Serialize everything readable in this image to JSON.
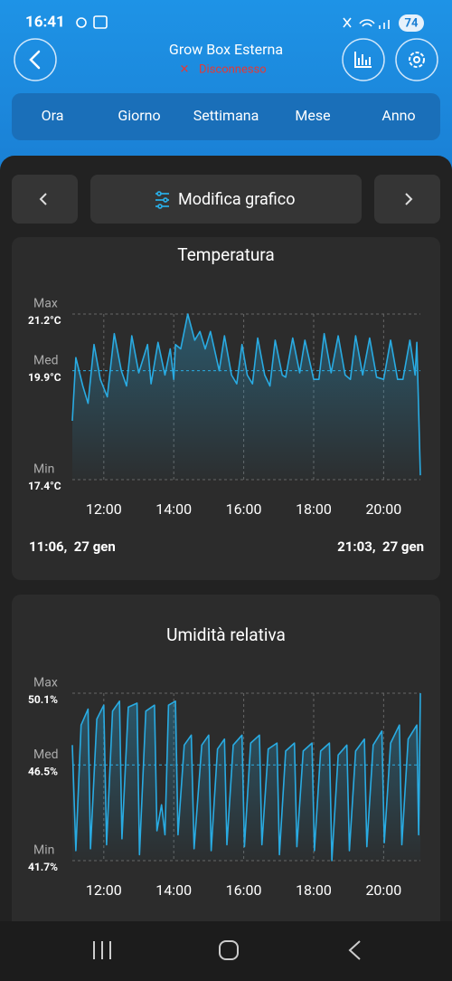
{
  "status_bar": {
    "time": "16:41",
    "battery": "74"
  },
  "header": {
    "title": "Grow Box Esterna",
    "status": "Disconnesso"
  },
  "tabs": [
    "Ora",
    "Giorno",
    "Settimana",
    "Mese",
    "Anno"
  ],
  "toolbar": {
    "button": "Modifica grafico"
  },
  "chart_data": [
    {
      "type": "line",
      "title": "Temperatura",
      "color": "#29abe2",
      "x": [
        11.1,
        11.2,
        11.4,
        11.55,
        11.72,
        11.9,
        12.1,
        12.3,
        12.5,
        12.65,
        12.8,
        13.0,
        13.25,
        13.35,
        13.55,
        13.75,
        13.9,
        14.0,
        14.05,
        14.2,
        14.4,
        14.6,
        14.75,
        14.9,
        15.05,
        15.3,
        15.45,
        15.65,
        15.8,
        15.95,
        16.1,
        16.25,
        16.4,
        16.6,
        16.75,
        16.9,
        17.1,
        17.2,
        17.4,
        17.6,
        17.75,
        18.0,
        18.15,
        18.3,
        18.5,
        18.7,
        18.9,
        19.05,
        19.2,
        19.4,
        19.6,
        19.8,
        20.0,
        20.2,
        20.4,
        20.55,
        20.75,
        20.9,
        20.95,
        21.05
      ],
      "values": [
        18.75,
        20.2,
        19.55,
        19.15,
        20.5,
        19.7,
        19.3,
        20.75,
        19.9,
        19.55,
        20.7,
        19.85,
        20.5,
        19.6,
        20.55,
        19.8,
        20.4,
        19.7,
        20.5,
        20.4,
        21.2,
        20.6,
        20.8,
        20.4,
        20.8,
        19.9,
        20.7,
        19.8,
        19.6,
        20.5,
        19.8,
        19.6,
        20.65,
        19.8,
        19.55,
        20.6,
        19.8,
        19.75,
        20.65,
        19.85,
        20.6,
        19.7,
        19.7,
        20.75,
        19.85,
        20.7,
        19.8,
        19.7,
        20.7,
        19.8,
        20.65,
        19.75,
        19.7,
        20.6,
        19.7,
        19.7,
        20.6,
        19.8,
        20.55,
        17.5
      ],
      "xlim": [
        11.1,
        21.05
      ],
      "xticks": [
        {
          "value": 12,
          "label": "12:00"
        },
        {
          "value": 14,
          "label": "14:00"
        },
        {
          "value": 16,
          "label": "16:00"
        },
        {
          "value": 18,
          "label": "18:00"
        },
        {
          "value": 20,
          "label": "20:00"
        }
      ],
      "ylim": [
        17.4,
        21.2
      ],
      "yticks": [
        {
          "value": 17.4,
          "label": "17.4°C"
        },
        {
          "value": 19.9,
          "label": "19.9°C"
        },
        {
          "value": 21.2,
          "label": "21.2°C"
        }
      ],
      "ytick_names": [
        "Min",
        "Med",
        "Max"
      ],
      "start_label": "11:06,  27 gen",
      "end_label": "21:03,  27 gen"
    },
    {
      "type": "line",
      "title": "Umidità relativa",
      "color": "#29abe2",
      "x": [
        11.1,
        11.2,
        11.35,
        11.55,
        11.62,
        11.8,
        12.0,
        12.08,
        12.25,
        12.45,
        12.52,
        12.7,
        12.95,
        13.02,
        13.2,
        13.45,
        13.52,
        13.65,
        13.75,
        13.85,
        14.05,
        14.12,
        14.3,
        14.5,
        14.58,
        14.8,
        15.0,
        15.07,
        15.25,
        15.45,
        15.52,
        15.7,
        15.95,
        16.02,
        16.2,
        16.45,
        16.52,
        16.7,
        16.95,
        17.02,
        17.2,
        17.45,
        17.52,
        17.7,
        17.95,
        18.02,
        18.2,
        18.45,
        18.52,
        18.7,
        18.95,
        19.02,
        19.2,
        19.45,
        19.52,
        19.7,
        19.95,
        20.02,
        20.2,
        20.45,
        20.52,
        20.7,
        20.95,
        21.0,
        21.05
      ],
      "values": [
        47.5,
        42.2,
        48.5,
        49.3,
        42.3,
        48.8,
        49.5,
        42.5,
        49.2,
        49.7,
        42.8,
        49.4,
        49.6,
        42.0,
        49.2,
        49.5,
        43.2,
        44.5,
        43.0,
        49.5,
        49.7,
        43.0,
        47.5,
        48.0,
        42.3,
        47.5,
        48.0,
        42.2,
        47.3,
        47.8,
        42.5,
        47.5,
        48.0,
        42.4,
        47.6,
        48.0,
        42.5,
        47.3,
        47.6,
        42.0,
        47.2,
        47.6,
        42.4,
        47.2,
        47.6,
        42.2,
        47.2,
        47.6,
        41.7,
        47.0,
        47.5,
        42.2,
        47.2,
        47.8,
        42.4,
        47.5,
        48.2,
        42.6,
        47.6,
        48.5,
        42.5,
        47.8,
        48.5,
        43.0,
        50.1
      ],
      "xlim": [
        11.1,
        21.05
      ],
      "xticks": [
        {
          "value": 12,
          "label": "12:00"
        },
        {
          "value": 14,
          "label": "14:00"
        },
        {
          "value": 16,
          "label": "16:00"
        },
        {
          "value": 18,
          "label": "18:00"
        },
        {
          "value": 20,
          "label": "20:00"
        }
      ],
      "ylim": [
        41.7,
        50.1
      ],
      "yticks": [
        {
          "value": 41.7,
          "label": "41.7%"
        },
        {
          "value": 46.5,
          "label": "46.5%"
        },
        {
          "value": 50.1,
          "label": "50.1%"
        }
      ],
      "ytick_names": [
        "Min",
        "Med",
        "Max"
      ]
    }
  ]
}
